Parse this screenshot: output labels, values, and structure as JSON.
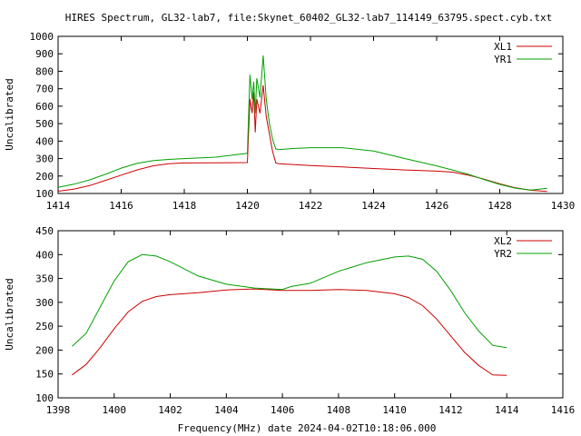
{
  "title": "HIRES Spectrum, GL32-lab7, file:Skynet_60402_GL32-lab7_114149_63795.spect.cyb.txt",
  "xlabel_bottom": "Frequency(MHz) date 2024-04-02T10:18:06.000",
  "colors": {
    "red": "#cc0000",
    "green": "#00a000",
    "frame": "#000000"
  },
  "chart_data": [
    {
      "type": "line",
      "ylabel": "Uncalibrated",
      "xlim": [
        1414,
        1430
      ],
      "ylim": [
        100,
        1000
      ],
      "x_ticks": [
        1414,
        1416,
        1418,
        1420,
        1422,
        1424,
        1426,
        1428,
        1430
      ],
      "y_ticks": [
        100,
        200,
        300,
        400,
        500,
        600,
        700,
        800,
        900,
        1000
      ],
      "legend_position": "top-right",
      "series": [
        {
          "name": "XL1",
          "color": "red",
          "points": [
            [
              1414.0,
              113
            ],
            [
              1414.5,
              125
            ],
            [
              1415.0,
              145
            ],
            [
              1415.5,
              175
            ],
            [
              1416.0,
              205
            ],
            [
              1416.5,
              235
            ],
            [
              1417.0,
              258
            ],
            [
              1417.5,
              270
            ],
            [
              1418.0,
              275
            ],
            [
              1419.0,
              276
            ],
            [
              1420.0,
              277
            ],
            [
              1420.08,
              640
            ],
            [
              1420.15,
              560
            ],
            [
              1420.2,
              680
            ],
            [
              1420.25,
              450
            ],
            [
              1420.3,
              640
            ],
            [
              1420.4,
              560
            ],
            [
              1420.5,
              720
            ],
            [
              1420.6,
              540
            ],
            [
              1420.7,
              440
            ],
            [
              1420.8,
              340
            ],
            [
              1420.9,
              275
            ],
            [
              1421.0,
              270
            ],
            [
              1421.5,
              265
            ],
            [
              1422.0,
              260
            ],
            [
              1423.0,
              252
            ],
            [
              1424.0,
              243
            ],
            [
              1425.0,
              235
            ],
            [
              1426.0,
              228
            ],
            [
              1426.5,
              222
            ],
            [
              1427.0,
              205
            ],
            [
              1427.5,
              182
            ],
            [
              1428.0,
              155
            ],
            [
              1428.5,
              132
            ],
            [
              1429.0,
              118
            ],
            [
              1429.5,
              112
            ]
          ]
        },
        {
          "name": "YR1",
          "color": "green",
          "points": [
            [
              1414.0,
              135
            ],
            [
              1414.5,
              153
            ],
            [
              1415.0,
              178
            ],
            [
              1415.5,
              210
            ],
            [
              1416.0,
              245
            ],
            [
              1416.5,
              272
            ],
            [
              1417.0,
              288
            ],
            [
              1417.5,
              295
            ],
            [
              1418.0,
              300
            ],
            [
              1419.0,
              308
            ],
            [
              1420.0,
              330
            ],
            [
              1420.08,
              780
            ],
            [
              1420.15,
              640
            ],
            [
              1420.2,
              740
            ],
            [
              1420.25,
              560
            ],
            [
              1420.3,
              760
            ],
            [
              1420.4,
              650
            ],
            [
              1420.5,
              890
            ],
            [
              1420.6,
              640
            ],
            [
              1420.7,
              500
            ],
            [
              1420.8,
              410
            ],
            [
              1420.9,
              355
            ],
            [
              1421.0,
              352
            ],
            [
              1421.5,
              358
            ],
            [
              1422.0,
              362
            ],
            [
              1423.0,
              362
            ],
            [
              1424.0,
              343
            ],
            [
              1425.0,
              300
            ],
            [
              1426.0,
              258
            ],
            [
              1426.5,
              235
            ],
            [
              1427.0,
              210
            ],
            [
              1427.5,
              180
            ],
            [
              1428.0,
              152
            ],
            [
              1428.5,
              130
            ],
            [
              1429.0,
              120
            ],
            [
              1429.5,
              130
            ]
          ]
        }
      ]
    },
    {
      "type": "line",
      "ylabel": "Uncalibrated",
      "xlim": [
        1398,
        1416
      ],
      "ylim": [
        100,
        450
      ],
      "x_ticks": [
        1398,
        1400,
        1402,
        1404,
        1406,
        1408,
        1410,
        1412,
        1414,
        1416
      ],
      "y_ticks": [
        100,
        150,
        200,
        250,
        300,
        350,
        400,
        450
      ],
      "legend_position": "top-right",
      "series": [
        {
          "name": "XL2",
          "color": "red",
          "points": [
            [
              1398.5,
              148
            ],
            [
              1399.0,
              170
            ],
            [
              1399.5,
              205
            ],
            [
              1400.0,
              245
            ],
            [
              1400.5,
              280
            ],
            [
              1401.0,
              302
            ],
            [
              1401.5,
              312
            ],
            [
              1402.0,
              316
            ],
            [
              1403.0,
              320
            ],
            [
              1404.0,
              326
            ],
            [
              1405.0,
              328
            ],
            [
              1406.0,
              325
            ],
            [
              1407.0,
              325
            ],
            [
              1408.0,
              327
            ],
            [
              1409.0,
              325
            ],
            [
              1410.0,
              318
            ],
            [
              1410.5,
              310
            ],
            [
              1411.0,
              293
            ],
            [
              1411.5,
              265
            ],
            [
              1412.0,
              230
            ],
            [
              1412.5,
              195
            ],
            [
              1413.0,
              168
            ],
            [
              1413.5,
              148
            ],
            [
              1414.0,
              147
            ]
          ]
        },
        {
          "name": "YR2",
          "color": "green",
          "points": [
            [
              1398.5,
              208
            ],
            [
              1399.0,
              235
            ],
            [
              1399.5,
              290
            ],
            [
              1400.0,
              345
            ],
            [
              1400.5,
              385
            ],
            [
              1401.0,
              400
            ],
            [
              1401.5,
              397
            ],
            [
              1402.0,
              385
            ],
            [
              1402.5,
              370
            ],
            [
              1403.0,
              355
            ],
            [
              1404.0,
              338
            ],
            [
              1405.0,
              330
            ],
            [
              1406.0,
              327
            ],
            [
              1406.3,
              333
            ],
            [
              1407.0,
              340
            ],
            [
              1408.0,
              365
            ],
            [
              1409.0,
              383
            ],
            [
              1410.0,
              395
            ],
            [
              1410.5,
              397
            ],
            [
              1411.0,
              390
            ],
            [
              1411.5,
              365
            ],
            [
              1412.0,
              325
            ],
            [
              1412.5,
              278
            ],
            [
              1413.0,
              240
            ],
            [
              1413.5,
              210
            ],
            [
              1414.0,
              205
            ]
          ]
        }
      ]
    }
  ]
}
